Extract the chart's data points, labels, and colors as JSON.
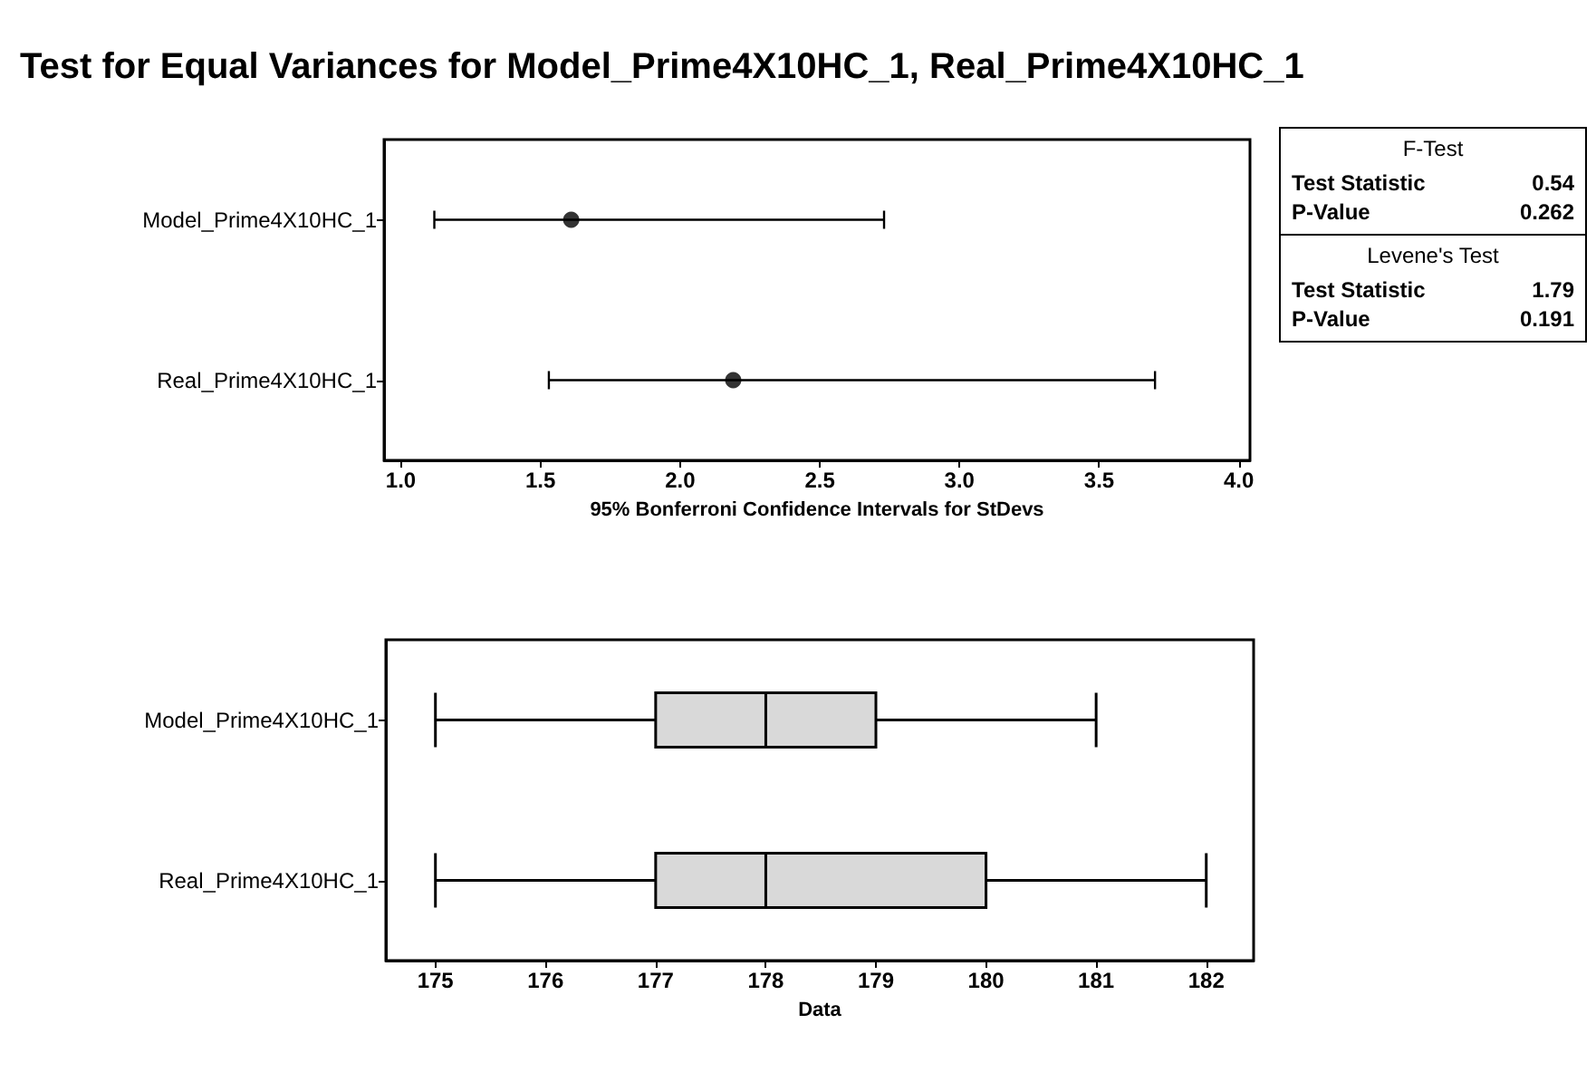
{
  "chart_data": [
    {
      "type": "scatter",
      "title": "Test for Equal Variances for Model_Prime4X10HC_1, Real_Prime4X10HC_1",
      "xlabel": "95% Bonferroni Confidence Intervals for StDevs",
      "orientation": "horizontal",
      "categories": [
        "Model_Prime4X10HC_1",
        "Real_Prime4X10HC_1"
      ],
      "values": [
        1.61,
        2.19
      ],
      "errors": [
        [
          1.12,
          2.73
        ],
        [
          1.53,
          3.7
        ]
      ],
      "color": "#000000",
      "marker": "circle",
      "xlim": [
        0.94,
        4.04
      ],
      "xticks": [
        {
          "value": 1,
          "label": "1.0"
        },
        1.5,
        {
          "value": 2,
          "label": "2.0"
        },
        2.5,
        {
          "value": 3,
          "label": "3.0"
        },
        3.5,
        {
          "value": 4,
          "label": "4.0"
        }
      ]
    },
    {
      "type": "box",
      "xlabel": "Data",
      "orientation": "horizontal",
      "categories": [
        "Model_Prime4X10HC_1",
        "Real_Prime4X10HC_1"
      ],
      "color": "#d9d9d9",
      "boxes": [
        {
          "low": 175,
          "q1": 177,
          "median": 178,
          "q3": 179,
          "high": 181
        },
        {
          "low": 175,
          "q1": 177,
          "median": 178,
          "q3": 180,
          "high": 182
        }
      ],
      "xlim": [
        174.55,
        182.43
      ],
      "xticks": [
        175,
        176,
        177,
        178,
        179,
        180,
        181,
        182
      ]
    },
    {
      "type": "other",
      "annotations": [
        "F-Test",
        "Test Statistic",
        "0.54",
        "P-Value",
        "0.262",
        "Levene's Test",
        "Test Statistic",
        "1.79",
        "P-Value",
        "0.191"
      ]
    }
  ]
}
